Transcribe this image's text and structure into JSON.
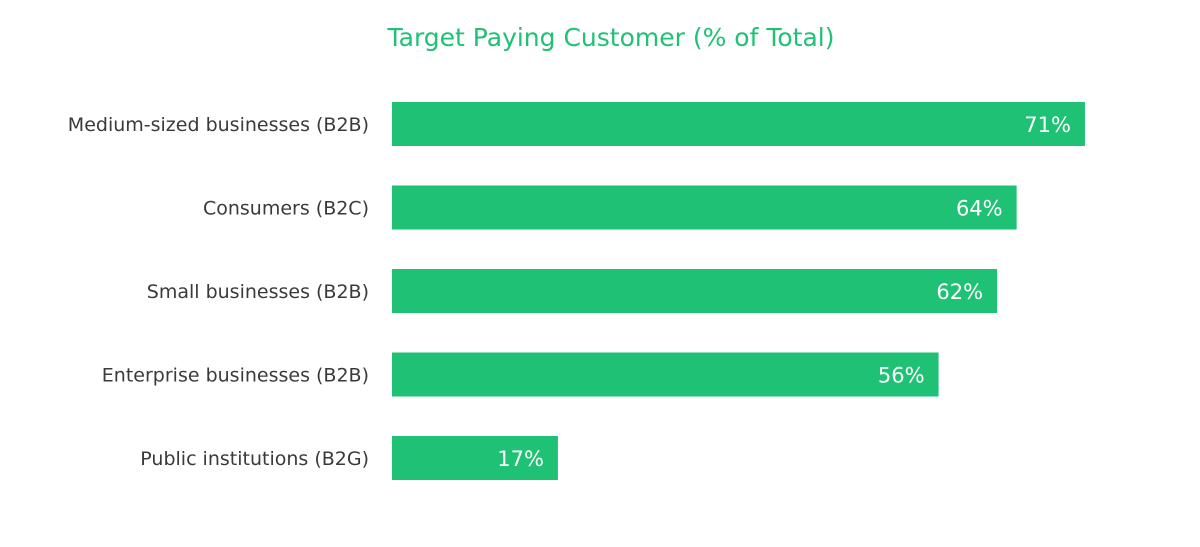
{
  "chart_data": {
    "type": "bar",
    "orientation": "horizontal",
    "title": "Target Paying Customer (% of Total)",
    "categories": [
      "Medium-sized businesses (B2B)",
      "Consumers (B2C)",
      "Small businesses (B2B)",
      "Enterprise businesses (B2B)",
      "Public institutions (B2G)"
    ],
    "values": [
      71,
      64,
      62,
      56,
      17
    ],
    "value_labels": [
      "71%",
      "64%",
      "62%",
      "56%",
      "17%"
    ],
    "xlim": [
      0,
      100
    ],
    "grid": false,
    "legend": "none",
    "colors": {
      "bar": "#1fc274",
      "title": "#1fc274",
      "label": "#3a3a3a",
      "value_label": "#ffffff"
    }
  }
}
